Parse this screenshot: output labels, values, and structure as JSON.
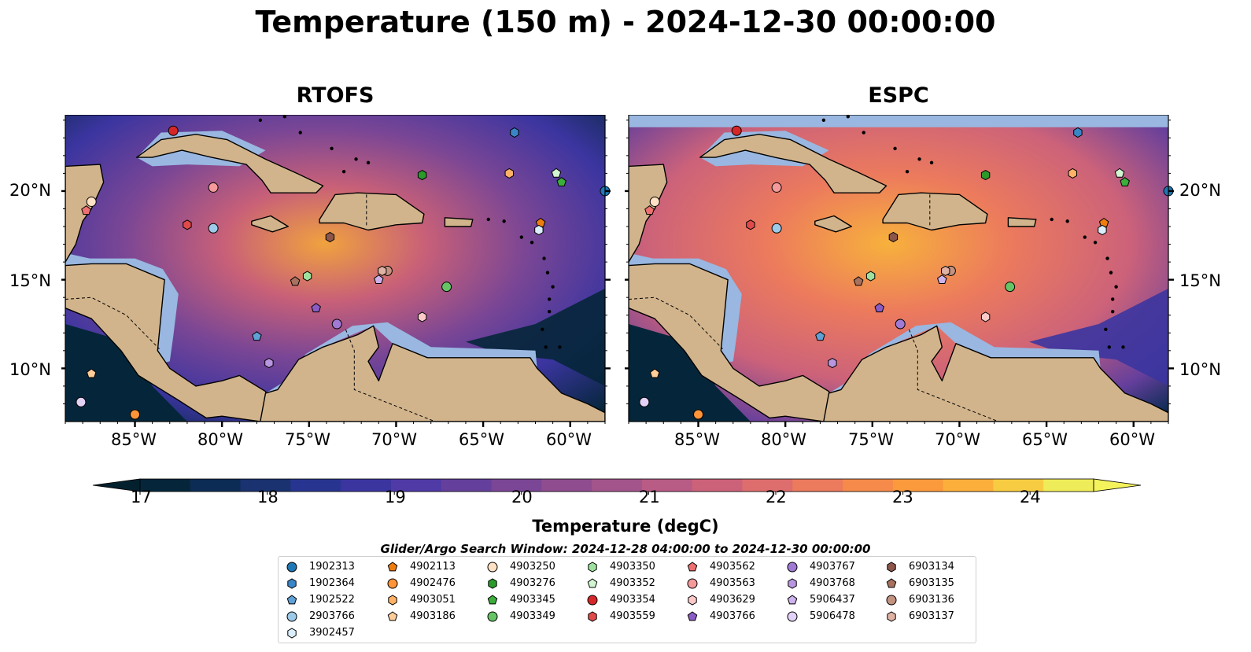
{
  "title": "Temperature (150 m) - 2024-12-30 00:00:00",
  "panels": [
    {
      "title": "RTOFS",
      "key": "rtofs"
    },
    {
      "title": "ESPC",
      "key": "espc"
    }
  ],
  "map_extent": {
    "lon_min": -89,
    "lon_max": -58,
    "lat_min": 7,
    "lat_max": 24.3
  },
  "lon_ticks": [
    {
      "value": -85,
      "label": "85°W"
    },
    {
      "value": -80,
      "label": "80°W"
    },
    {
      "value": -75,
      "label": "75°W"
    },
    {
      "value": -70,
      "label": "70°W"
    },
    {
      "value": -65,
      "label": "65°W"
    },
    {
      "value": -60,
      "label": "60°W"
    }
  ],
  "lat_ticks": [
    {
      "value": 20,
      "label": "20°N"
    },
    {
      "value": 15,
      "label": "15°N"
    },
    {
      "value": 10,
      "label": "10°N"
    }
  ],
  "colorbar": {
    "label": "Temperature (degC)",
    "min": 17,
    "max": 24.5,
    "step": 0.5,
    "ticks": [
      "17",
      "18",
      "19",
      "20",
      "21",
      "22",
      "23",
      "24"
    ],
    "extend": "both",
    "colors": [
      "#05263a",
      "#0d2c55",
      "#1a3270",
      "#283590",
      "#3b35a0",
      "#4f3aa6",
      "#653f9c",
      "#7a4695",
      "#8f4d8f",
      "#a3548b",
      "#b85b85",
      "#cc627a",
      "#de6d6e",
      "#ec7a5d",
      "#f58a4a",
      "#fa9a3c",
      "#fcaf3b",
      "#f8cc42",
      "#efec5a"
    ],
    "under_color": "#03202e",
    "over_color": "#f5f35c"
  },
  "colors": {
    "land": "#d2b48c",
    "shelf": "#99b7e0",
    "ocean_cold": "#05263a",
    "ocean_warm": "#e9784d"
  },
  "legend": {
    "title": "Glider/Argo Search Window: 2024-12-28 04:00:00 to 2024-12-30 00:00:00",
    "items": [
      {
        "id": "1902313",
        "color": "#1f77b4",
        "marker": "circle"
      },
      {
        "id": "1902364",
        "color": "#3a85c6",
        "marker": "hexagon"
      },
      {
        "id": "1902522",
        "color": "#5fa1d6",
        "marker": "pentagon"
      },
      {
        "id": "2903766",
        "color": "#9ecae9",
        "marker": "circle"
      },
      {
        "id": "3902457",
        "color": "#daeefb",
        "marker": "hexagon"
      },
      {
        "id": "4902113",
        "color": "#ee7d0e",
        "marker": "pentagon"
      },
      {
        "id": "4902476",
        "color": "#ff9438",
        "marker": "circle"
      },
      {
        "id": "4903051",
        "color": "#ffb266",
        "marker": "hexagon"
      },
      {
        "id": "4903186",
        "color": "#ffcd99",
        "marker": "pentagon"
      },
      {
        "id": "4903250",
        "color": "#ffe2c5",
        "marker": "circle"
      },
      {
        "id": "4903276",
        "color": "#2a9a2a",
        "marker": "hexagon"
      },
      {
        "id": "4903345",
        "color": "#3bae3b",
        "marker": "pentagon"
      },
      {
        "id": "4903349",
        "color": "#66c466",
        "marker": "circle"
      },
      {
        "id": "4903350",
        "color": "#9ee09e",
        "marker": "hexagon"
      },
      {
        "id": "4903352",
        "color": "#d2f5d2",
        "marker": "pentagon"
      },
      {
        "id": "4903354",
        "color": "#d62728",
        "marker": "circle"
      },
      {
        "id": "4903559",
        "color": "#e04a4a",
        "marker": "hexagon"
      },
      {
        "id": "4903562",
        "color": "#ee7070",
        "marker": "pentagon"
      },
      {
        "id": "4903563",
        "color": "#f59a9a",
        "marker": "circle"
      },
      {
        "id": "4903629",
        "color": "#fcc8c8",
        "marker": "hexagon"
      },
      {
        "id": "4903766",
        "color": "#8a5cc4",
        "marker": "pentagon"
      },
      {
        "id": "4903767",
        "color": "#a07ad4",
        "marker": "circle"
      },
      {
        "id": "4903768",
        "color": "#b896e0",
        "marker": "hexagon"
      },
      {
        "id": "5906437",
        "color": "#cdb2ec",
        "marker": "pentagon"
      },
      {
        "id": "5906478",
        "color": "#e3d2f7",
        "marker": "circle"
      },
      {
        "id": "6903134",
        "color": "#8c564b",
        "marker": "hexagon"
      },
      {
        "id": "6903135",
        "color": "#a8725f",
        "marker": "pentagon"
      },
      {
        "id": "6903136",
        "color": "#c49280",
        "marker": "circle"
      },
      {
        "id": "6903137",
        "color": "#e0b2a4",
        "marker": "hexagon"
      }
    ]
  },
  "floats": [
    {
      "id": "4903354",
      "lon": -82.8,
      "lat": 23.4
    },
    {
      "id": "1902364",
      "lon": -63.2,
      "lat": 23.3
    },
    {
      "id": "4903051",
      "lon": -63.5,
      "lat": 21.0
    },
    {
      "id": "4903352",
      "lon": -60.8,
      "lat": 21.0
    },
    {
      "id": "4903345",
      "lon": -60.5,
      "lat": 20.5
    },
    {
      "id": "4903276",
      "lon": -68.5,
      "lat": 20.9
    },
    {
      "id": "1902313",
      "lon": -58.0,
      "lat": 20.0
    },
    {
      "id": "4903250",
      "lon": -87.5,
      "lat": 19.4
    },
    {
      "id": "4903562",
      "lon": -87.8,
      "lat": 18.9
    },
    {
      "id": "4903563",
      "lon": -80.5,
      "lat": 20.2
    },
    {
      "id": "4903559",
      "lon": -82.0,
      "lat": 18.1
    },
    {
      "id": "2903766",
      "lon": -80.5,
      "lat": 17.9
    },
    {
      "id": "6903134",
      "lon": -73.8,
      "lat": 17.4
    },
    {
      "id": "4902113",
      "lon": -61.7,
      "lat": 18.2
    },
    {
      "id": "3902457",
      "lon": -61.8,
      "lat": 17.8
    },
    {
      "id": "6903135",
      "lon": -75.8,
      "lat": 14.9
    },
    {
      "id": "4903350",
      "lon": -75.1,
      "lat": 15.2
    },
    {
      "id": "6903136",
      "lon": -70.5,
      "lat": 15.5
    },
    {
      "id": "6903137",
      "lon": -70.8,
      "lat": 15.5
    },
    {
      "id": "5906437",
      "lon": -71.0,
      "lat": 15.0
    },
    {
      "id": "4903349",
      "lon": -67.1,
      "lat": 14.6
    },
    {
      "id": "4903766",
      "lon": -74.6,
      "lat": 13.4
    },
    {
      "id": "4903767",
      "lon": -73.4,
      "lat": 12.5
    },
    {
      "id": "4903629",
      "lon": -68.5,
      "lat": 12.9
    },
    {
      "id": "1902522",
      "lon": -78.0,
      "lat": 11.8
    },
    {
      "id": "4903768",
      "lon": -77.3,
      "lat": 10.3
    },
    {
      "id": "4903186",
      "lon": -87.5,
      "lat": 9.7
    },
    {
      "id": "5906478",
      "lon": -88.1,
      "lat": 8.1
    },
    {
      "id": "4902476",
      "lon": -85.0,
      "lat": 7.4
    }
  ]
}
